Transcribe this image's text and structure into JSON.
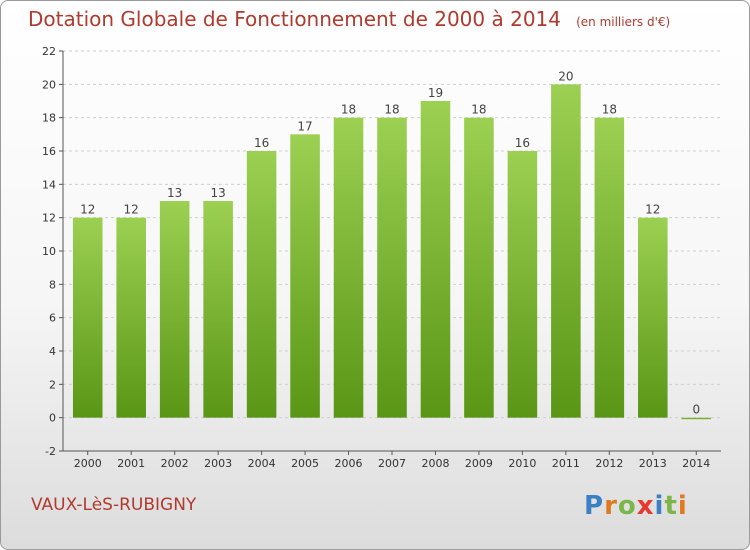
{
  "title": "Dotation Globale de Fonctionnement de 2000 à 2014",
  "subtitle": "(en milliers d'€)",
  "commune": "VAUX-LèS-RUBIGNY",
  "logo": {
    "letters": [
      "P",
      "r",
      "o",
      "x",
      "i",
      "t",
      "i"
    ],
    "colors": [
      "#3b7fc4",
      "#e07a1f",
      "#7ab648",
      "#e63a2e",
      "#3b7fc4",
      "#7ab648",
      "#e07a1f"
    ]
  },
  "colors": {
    "bar_top": "#9cd052",
    "bar_bottom": "#5a9616",
    "title": "#b03a2e"
  },
  "chart_data": {
    "type": "bar",
    "categories": [
      "2000",
      "2001",
      "2002",
      "2003",
      "2004",
      "2005",
      "2006",
      "2007",
      "2008",
      "2009",
      "2010",
      "2011",
      "2012",
      "2013",
      "2014"
    ],
    "values": [
      12,
      12,
      13,
      13,
      16,
      17,
      18,
      18,
      19,
      18,
      16,
      20,
      18,
      12,
      0
    ],
    "title": "Dotation Globale de Fonctionnement de 2000 à 2014",
    "subtitle": "(en milliers d'€)",
    "xlabel": "",
    "ylabel": "",
    "ylim": [
      -2,
      22
    ],
    "yticks": [
      -2,
      0,
      2,
      4,
      6,
      8,
      10,
      12,
      14,
      16,
      18,
      20,
      22
    ],
    "grid": true,
    "legend": "none"
  }
}
